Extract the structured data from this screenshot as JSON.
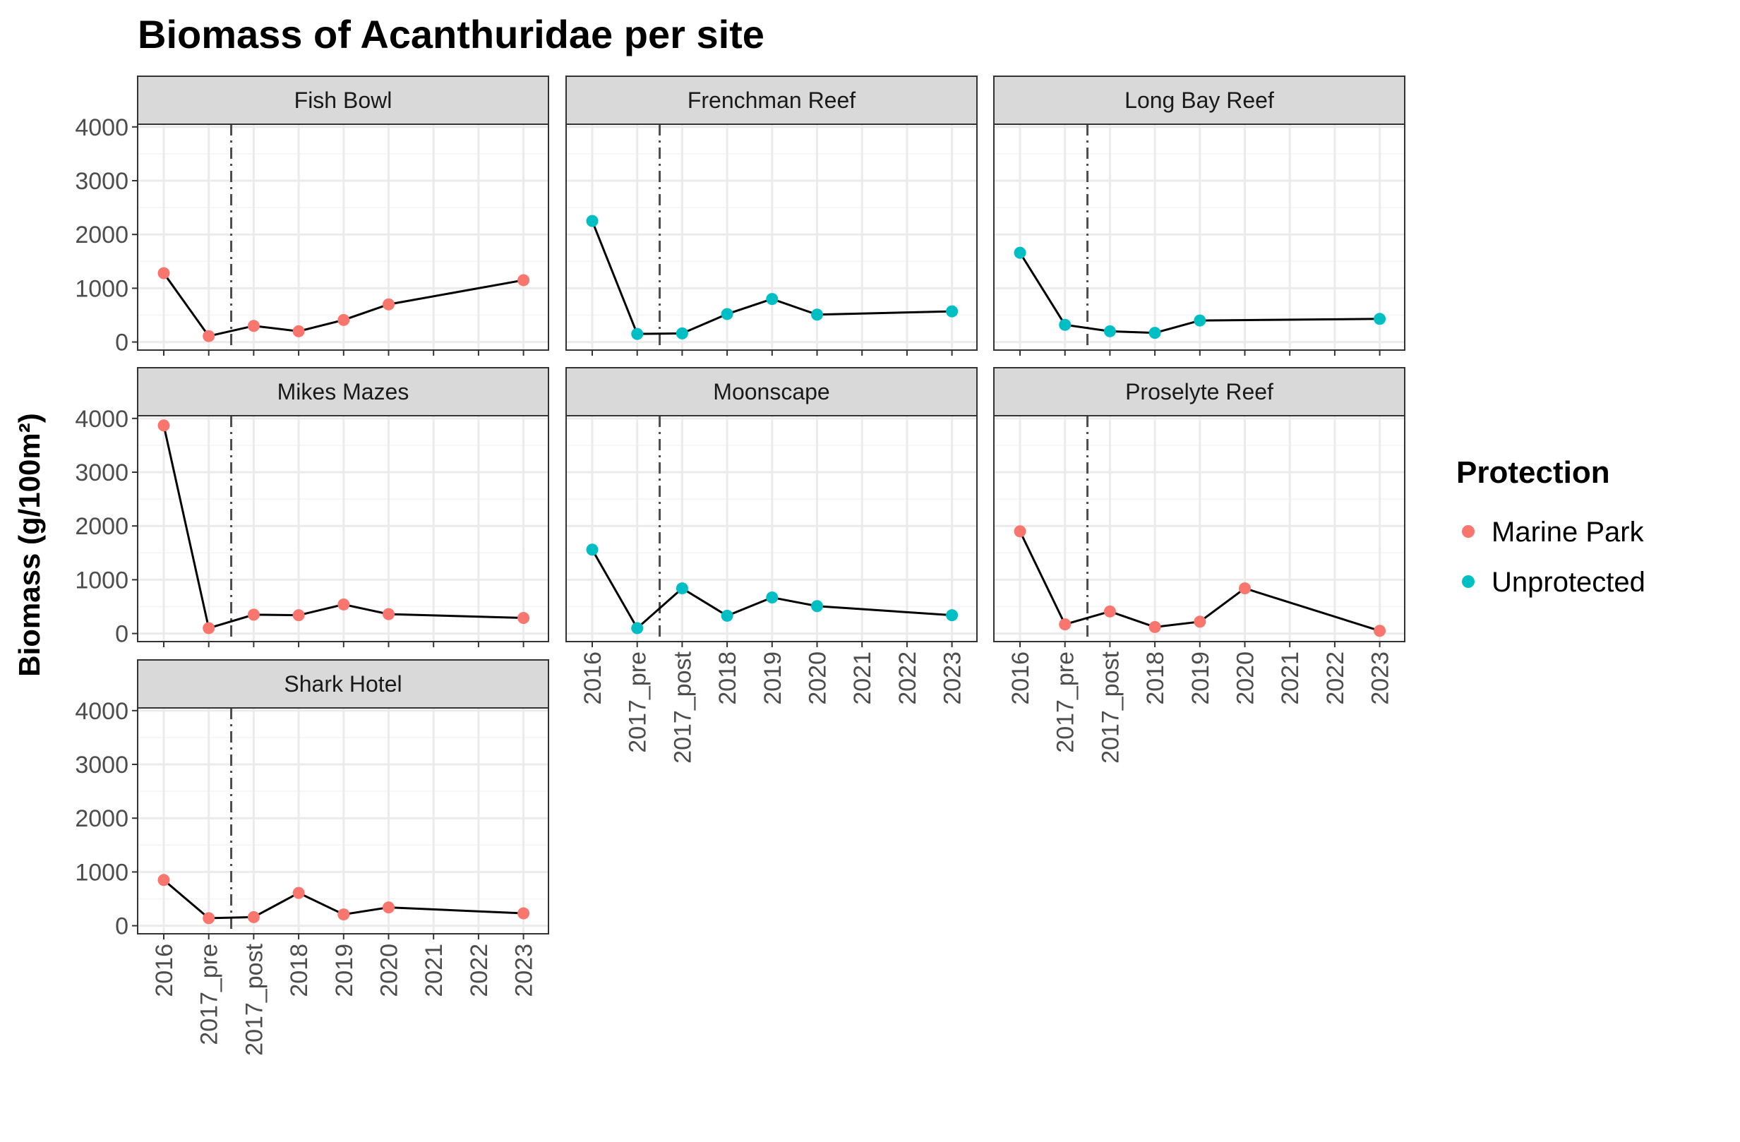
{
  "chart_data": {
    "type": "line",
    "title": "Biomass of Acanthuridae per site",
    "ylabel": "Biomass (g/100m²)",
    "xlabel": "",
    "categories": [
      "2016",
      "2017_pre",
      "2017_post",
      "2018",
      "2019",
      "2020",
      "2021",
      "2022",
      "2023"
    ],
    "yticks": [
      0,
      1000,
      2000,
      3000,
      4000
    ],
    "ylim": [
      -150,
      4050
    ],
    "grid": true,
    "reference_line": {
      "position": "between 2017_pre and 2017_post",
      "style": "dashed-dotted"
    },
    "legend": {
      "title": "Protection",
      "placement": "right",
      "entries": [
        {
          "label": "Marine Park",
          "color": "#F8766D"
        },
        {
          "label": "Unprotected",
          "color": "#00BFC4"
        }
      ]
    },
    "panels": [
      {
        "site": "Fish Bowl",
        "protection": "Marine Park",
        "x": [
          "2016",
          "2017_pre",
          "2017_post",
          "2018",
          "2019",
          "2020",
          "2023"
        ],
        "values": [
          1280,
          110,
          300,
          200,
          410,
          700,
          1150
        ]
      },
      {
        "site": "Frenchman Reef",
        "protection": "Unprotected",
        "x": [
          "2016",
          "2017_pre",
          "2017_post",
          "2018",
          "2019",
          "2020",
          "2023"
        ],
        "values": [
          2250,
          150,
          160,
          520,
          800,
          510,
          570
        ]
      },
      {
        "site": "Long Bay Reef",
        "protection": "Unprotected",
        "x": [
          "2016",
          "2017_pre",
          "2017_post",
          "2018",
          "2019",
          "2023"
        ],
        "values": [
          1660,
          320,
          200,
          170,
          400,
          430
        ]
      },
      {
        "site": "Mikes Mazes",
        "protection": "Marine Park",
        "x": [
          "2016",
          "2017_pre",
          "2017_post",
          "2018",
          "2019",
          "2020",
          "2023"
        ],
        "values": [
          3870,
          100,
          350,
          340,
          540,
          360,
          290
        ]
      },
      {
        "site": "Moonscape",
        "protection": "Unprotected",
        "x": [
          "2016",
          "2017_pre",
          "2017_post",
          "2018",
          "2019",
          "2020",
          "2023"
        ],
        "values": [
          1560,
          100,
          840,
          330,
          670,
          510,
          340
        ]
      },
      {
        "site": "Proselyte Reef",
        "protection": "Marine Park",
        "x": [
          "2016",
          "2017_pre",
          "2017_post",
          "2018",
          "2019",
          "2020",
          "2023"
        ],
        "values": [
          1900,
          170,
          410,
          120,
          220,
          840,
          50
        ]
      },
      {
        "site": "Shark Hotel",
        "protection": "Marine Park",
        "x": [
          "2016",
          "2017_pre",
          "2017_post",
          "2018",
          "2019",
          "2020",
          "2023"
        ],
        "values": [
          850,
          140,
          160,
          610,
          210,
          340,
          230
        ]
      }
    ]
  }
}
